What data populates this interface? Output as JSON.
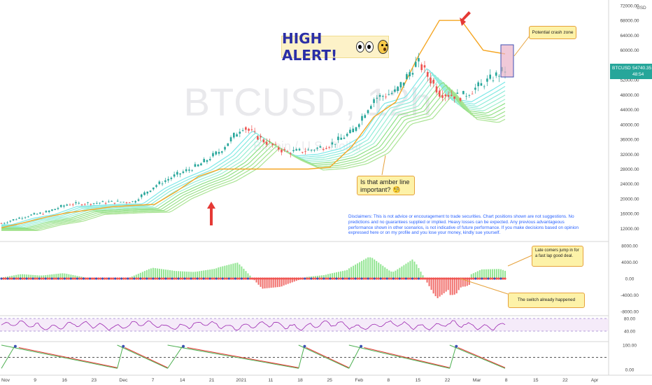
{
  "chart_data": {
    "type": "candlestick",
    "symbol": "BTCUSD",
    "interval_watermark": "BTCUSD, 12h",
    "subtitle_watermark": "Bitcoin / U.S. Dollar",
    "currency": "USD",
    "last_price": "54740.35",
    "countdown": "48:54",
    "price_axis_ticks": [
      "72000.00",
      "68000.00",
      "64000.00",
      "60000.00",
      "56000.00",
      "52000.00",
      "48000.00",
      "44000.00",
      "40000.00",
      "36000.00",
      "32000.00",
      "28000.00",
      "24000.00",
      "20000.00",
      "16000.00",
      "12000.00"
    ],
    "macd_axis_ticks": [
      "8000.00",
      "4000.00",
      "0.00",
      "-4000.00",
      "-8000.00"
    ],
    "rsi_axis_ticks": [
      "80.00",
      "40.00"
    ],
    "stoch_axis_ticks": [
      "100.00",
      "0.00"
    ],
    "time_axis_ticks": [
      "Nov",
      "9",
      "16",
      "23",
      "Dec",
      "7",
      "14",
      "21",
      "2021",
      "11",
      "18",
      "25",
      "Feb",
      "8",
      "15",
      "22",
      "Mar",
      "8",
      "15",
      "22",
      "Apr"
    ],
    "ylim": [
      10000,
      73000
    ],
    "price_path_weekly": [
      13400,
      15200,
      16300,
      18500,
      18800,
      19100,
      19200,
      23500,
      26500,
      29000,
      33000,
      39500,
      35500,
      32500,
      33000,
      34500,
      38000,
      47000,
      48800,
      57000,
      48500,
      47500,
      51000,
      54740
    ],
    "amber_line_weekly": [
      12200,
      13500,
      15000,
      16200,
      17000,
      17800,
      18200,
      18500,
      22000,
      26000,
      28000,
      28000,
      28000,
      28000,
      28000,
      28500,
      34000,
      42000,
      46000,
      58000,
      68000,
      68000,
      60000,
      59000
    ]
  },
  "header": {
    "alert_text": "HIGH ALERT!"
  },
  "annotations": {
    "crash_zone": "Potential crash zone",
    "amber_line": "Is that amber line important? 🧐",
    "late_comers": "Late comers jump in for a fast lap good deal.",
    "switch": "The switch already happened"
  },
  "disclaimer": "Disclaimers: This is not advice or encouragement to trade securities. Chart positions shown are not suggestions. No predictions and no guarantees supplied or implied. Heavy losses can be expected. Any previous advantageous performance shown in other scenarios, is not indicative of future performance.  If you make decisions based on opinion expressed here or on my profile and you lose your money, kindly sue yourself.",
  "colors": {
    "up": "#26a69a",
    "down": "#ef5350",
    "amber": "#f5a623",
    "arrow": "#e53935",
    "macd_up": "#7fe07f",
    "macd_down": "#ef5350",
    "rsi": "#9c27b0",
    "stoch_k": "#4caf50",
    "stoch_d": "#e53935",
    "highlight": "#e9b2c8",
    "price_tag": "#26a69a",
    "text_blue": "#2962ff"
  }
}
